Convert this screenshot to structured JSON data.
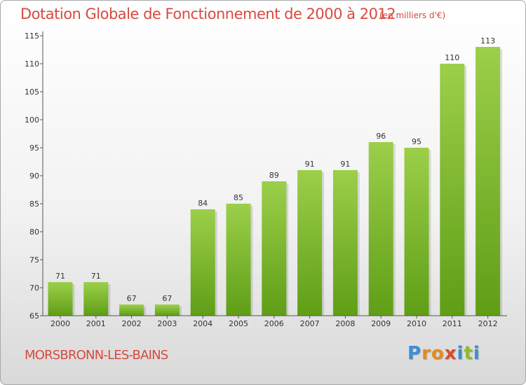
{
  "header": {
    "title": "Dotation Globale de Fonctionnement de 2000 à 2012",
    "unit": "(en milliers d'€)"
  },
  "footer": {
    "location": "MORSBRONN-LES-BAINS",
    "logo_letters": [
      "P",
      "r",
      "o",
      "x",
      "i",
      "t",
      "i"
    ],
    "logo_colors": [
      "#3a8fd6",
      "#e8891e",
      "#e8891e",
      "#d94a2b",
      "#3a8fd6",
      "#8dbd25",
      "#3a8fd6"
    ]
  },
  "colors": {
    "bar_top": "#9ccf4a",
    "bar_bottom": "#5f9e16",
    "title": "#d84a3f"
  },
  "chart_data": {
    "type": "bar",
    "title": "Dotation Globale de Fonctionnement de 2000 à 2012",
    "xlabel": "",
    "ylabel": "",
    "categories": [
      "2000",
      "2001",
      "2002",
      "2003",
      "2004",
      "2005",
      "2006",
      "2007",
      "2008",
      "2009",
      "2010",
      "2011",
      "2012"
    ],
    "values": [
      71,
      71,
      67,
      67,
      84,
      85,
      89,
      91,
      91,
      96,
      95,
      110,
      113
    ],
    "ylim": [
      65,
      115
    ],
    "yticks": [
      65,
      70,
      75,
      80,
      85,
      90,
      95,
      100,
      105,
      110,
      115
    ],
    "grid": false,
    "legend": "none"
  }
}
